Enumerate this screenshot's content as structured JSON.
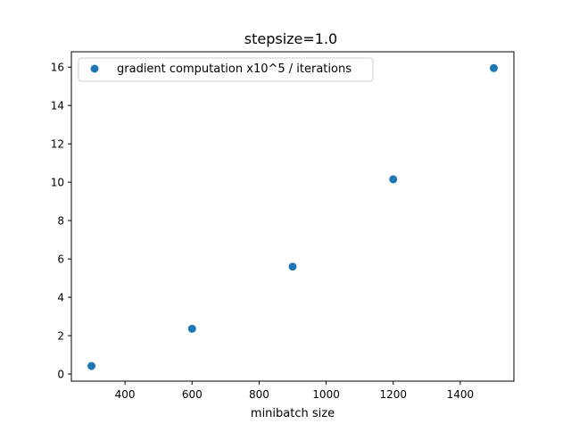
{
  "chart_data": {
    "type": "scatter",
    "title": "stepsize=1.0",
    "xlabel": "minibatch size",
    "ylabel": "",
    "xlim": [
      240,
      1560
    ],
    "ylim": [
      -0.37,
      16.8
    ],
    "xticks": [
      400,
      600,
      800,
      1000,
      1200,
      1400
    ],
    "yticks": [
      0,
      2,
      4,
      6,
      8,
      10,
      12,
      14,
      16
    ],
    "grid": false,
    "legend_position": "top-left",
    "series": [
      {
        "name": "gradient computation x10^5 / iterations",
        "color": "#1f77b4",
        "marker": "circle",
        "x": [
          300,
          600,
          900,
          1200,
          1500
        ],
        "y": [
          0.42,
          2.36,
          5.6,
          10.15,
          15.95
        ]
      }
    ]
  }
}
